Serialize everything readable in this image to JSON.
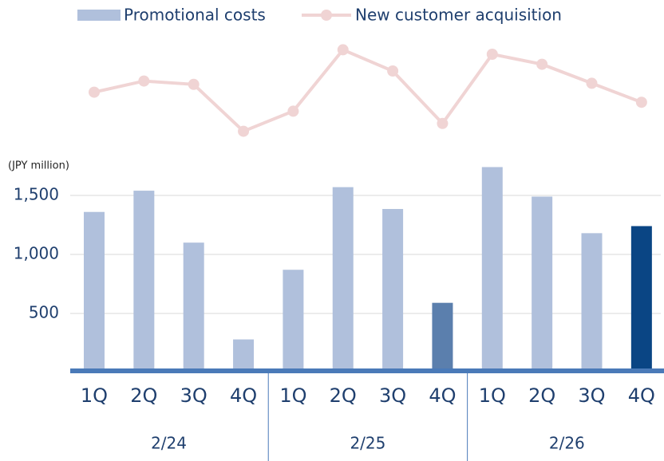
{
  "chart_data": {
    "type": "bar",
    "unit_label": "(JPY million)",
    "categories": [
      "1Q",
      "2Q",
      "3Q",
      "4Q",
      "1Q",
      "2Q",
      "3Q",
      "4Q",
      "1Q",
      "2Q",
      "3Q",
      "4Q"
    ],
    "groups": [
      "2/24",
      "2/25",
      "2/26"
    ],
    "ylim": [
      0,
      1800
    ],
    "yticks": [
      {
        "value": 500,
        "label": "500"
      },
      {
        "value": 1000,
        "label": "1,000"
      },
      {
        "value": 1500,
        "label": "1,500"
      }
    ],
    "grid": true,
    "y2lim": [
      0,
      100
    ],
    "series": [
      {
        "name": "Promotional costs",
        "type": "bar",
        "colors": [
          "#b0c0dc",
          "#b0c0dc",
          "#b0c0dc",
          "#b0c0dc",
          "#b0c0dc",
          "#b0c0dc",
          "#b0c0dc",
          "#5b7fad",
          "#b0c0dc",
          "#b0c0dc",
          "#b0c0dc",
          "#0a4584"
        ],
        "color": "#b0c0dc",
        "values": [
          1360,
          1540,
          1100,
          280,
          870,
          1570,
          1385,
          590,
          1740,
          1490,
          1180,
          1240
        ]
      },
      {
        "name": "New customer acquisition",
        "type": "line",
        "axis": "y2",
        "color": "#f0d4d4",
        "values": [
          46,
          56,
          53,
          11,
          29,
          84,
          65,
          18,
          80,
          71,
          54,
          37
        ]
      }
    ]
  }
}
